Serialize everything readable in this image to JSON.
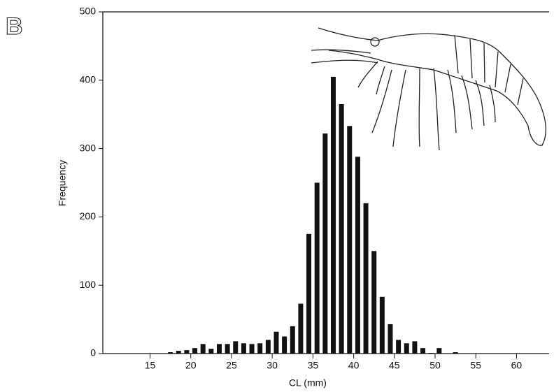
{
  "chart_data": {
    "type": "histogram",
    "panel_label": "B",
    "x_label": "CL (mm)",
    "y_label": "Frequency",
    "bins": [
      17,
      18,
      19,
      20,
      21,
      22,
      23,
      24,
      25,
      26,
      27,
      28,
      29,
      30,
      31,
      32,
      33,
      34,
      35,
      36,
      37,
      38,
      39,
      40,
      41,
      42,
      43,
      44,
      45,
      46,
      47,
      48,
      49,
      50,
      51,
      52,
      53
    ],
    "values": [
      2,
      4,
      5,
      8,
      14,
      7,
      14,
      14,
      18,
      15,
      14,
      15,
      20,
      32,
      25,
      40,
      73,
      175,
      250,
      322,
      405,
      365,
      333,
      288,
      220,
      150,
      83,
      43,
      20,
      15,
      18,
      8,
      1,
      8,
      0,
      2
    ],
    "color": "#111111",
    "xlim": [
      9.2,
      64
    ],
    "xticks": [
      15,
      20,
      25,
      30,
      35,
      40,
      45,
      50,
      55,
      60
    ],
    "ylim": [
      0,
      500
    ],
    "yticks": [
      0,
      100,
      200,
      300,
      400,
      500
    ]
  }
}
